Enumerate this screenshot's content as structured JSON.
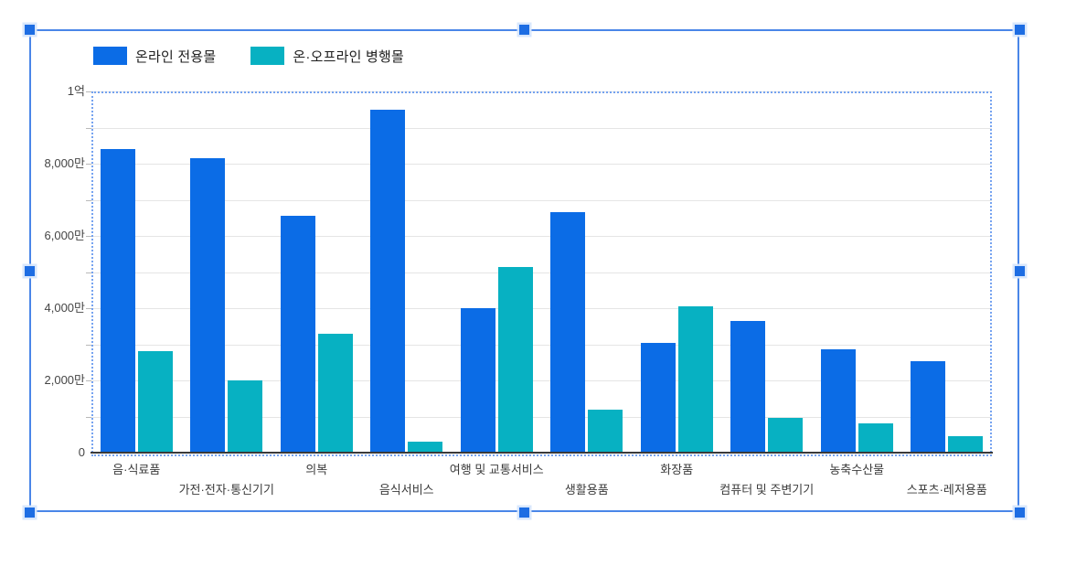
{
  "chart_data": {
    "type": "bar",
    "title": "",
    "categories": [
      "음·식료품",
      "가전·전자·통신기기",
      "의복",
      "음식서비스",
      "여행 및 교통서비스",
      "생활용품",
      "화장품",
      "컴퓨터 및 주변기기",
      "농축수산물",
      "스포츠·레저용품"
    ],
    "series": [
      {
        "name": "온라인 전용몰",
        "color": "#0b6ce6",
        "values": [
          8400,
          8150,
          6550,
          9500,
          4000,
          6650,
          3050,
          3650,
          2850,
          2520
        ]
      },
      {
        "name": "온·오프라인 병행몰",
        "color": "#07b1c2",
        "values": [
          2800,
          2000,
          3300,
          300,
          5150,
          1200,
          4050,
          950,
          800,
          450
        ]
      }
    ],
    "unit": "만 (1억 = 10,000만)",
    "ylim": [
      0,
      10000
    ],
    "y_axis": {
      "minor_step": 1000,
      "ticks": [
        {
          "value": 0,
          "label": "0"
        },
        {
          "value": 2000,
          "label": "2,000만"
        },
        {
          "value": 4000,
          "label": "4,000만"
        },
        {
          "value": 6000,
          "label": "6,000만"
        },
        {
          "value": 8000,
          "label": "8,000만"
        },
        {
          "value": 10000,
          "label": "1억"
        }
      ]
    },
    "grid": true,
    "legend_position": "top"
  },
  "selection": {
    "state": "selected",
    "border_color": "#4a86e8",
    "handle_color": "#1d6de3",
    "handles": [
      "top-left",
      "top-center",
      "top-right",
      "middle-left",
      "middle-right",
      "bottom-left",
      "bottom-center",
      "bottom-right"
    ]
  }
}
